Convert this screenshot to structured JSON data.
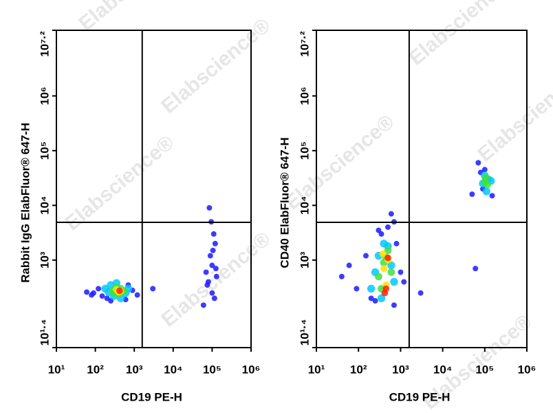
{
  "watermark": "Elabscience®",
  "chart_data": [
    {
      "type": "scatter",
      "xlabel": "CD19 PE-H",
      "ylabel": "Rabbit IgG ElabFluor® 647-H",
      "log_x": true,
      "log_y": true,
      "xlim": [
        10,
        1000000
      ],
      "ylim": [
        25.1188643150958,
        15848931.9246193
      ],
      "xticks": [
        {
          "value": 10,
          "label": "10¹"
        },
        {
          "value": 100,
          "label": "10²"
        },
        {
          "value": 1000,
          "label": "10³"
        },
        {
          "value": 10000,
          "label": "10⁴"
        },
        {
          "value": 100000,
          "label": "10⁵"
        },
        {
          "value": 1000000,
          "label": "10⁶"
        }
      ],
      "yticks": [
        {
          "value": 25.1188643150958,
          "label": "10¹·⁴"
        },
        {
          "value": 1000,
          "label": "10³"
        },
        {
          "value": 10000,
          "label": "10⁴"
        },
        {
          "value": 100000,
          "label": "10⁵"
        },
        {
          "value": 1000000,
          "label": "10⁶"
        },
        {
          "value": 15848931.9246193,
          "label": "10⁷·²"
        }
      ],
      "quadrant_gate": {
        "x": 1600,
        "y": 4900
      },
      "series": [
        {
          "color": "#1a1aff",
          "x": [
            60,
            90,
            120,
            150,
            200,
            900,
            1200,
            700,
            80,
            250,
            600,
            3000,
            60000,
            80000,
            100000,
            120000,
            90000,
            110000,
            70000,
            130000,
            100000,
            95000,
            85000,
            115000,
            105000,
            75000,
            125000
          ],
          "values": [
            260,
            250,
            300,
            220,
            200,
            280,
            230,
            350,
            230,
            180,
            190,
            300,
            150,
            400,
            800,
            2000,
            1200,
            3000,
            600,
            500,
            250,
            5000,
            9000,
            200,
            1500,
            350,
            700
          ]
        },
        {
          "color": "#00c8ff",
          "x": [
            180,
            250,
            300,
            450,
            600,
            700,
            350,
            220
          ],
          "values": [
            300,
            350,
            220,
            200,
            250,
            300,
            380,
            260
          ]
        },
        {
          "color": "#40e040",
          "x": [
            280,
            350,
            450,
            550,
            400,
            300
          ],
          "values": [
            280,
            320,
            300,
            270,
            240,
            250
          ]
        },
        {
          "color": "#ffe000",
          "x": [
            350,
            450,
            400
          ],
          "values": [
            290,
            270,
            260
          ]
        },
        {
          "color": "#ff2000",
          "x": [
            420
          ],
          "values": [
            275
          ]
        }
      ]
    },
    {
      "type": "scatter",
      "xlabel": "CD19 PE-H",
      "ylabel": "CD40 ElabFluor® 647-H",
      "log_x": true,
      "log_y": true,
      "xlim": [
        10,
        1000000
      ],
      "ylim": [
        25.1188643150958,
        15848931.9246193
      ],
      "xticks": [
        {
          "value": 10,
          "label": "10¹"
        },
        {
          "value": 100,
          "label": "10²"
        },
        {
          "value": 1000,
          "label": "10³"
        },
        {
          "value": 10000,
          "label": "10⁴"
        },
        {
          "value": 100000,
          "label": "10⁵"
        },
        {
          "value": 1000000,
          "label": "10⁶"
        }
      ],
      "yticks": [
        {
          "value": 25.1188643150958,
          "label": "10¹·⁴"
        },
        {
          "value": 1000,
          "label": "10³"
        },
        {
          "value": 10000,
          "label": "10⁴"
        },
        {
          "value": 100000,
          "label": "10⁵"
        },
        {
          "value": 1000000,
          "label": "10⁶"
        },
        {
          "value": 15848931.9246193,
          "label": "10⁷·²"
        }
      ],
      "quadrant_gate": {
        "x": 1600,
        "y": 4900
      },
      "series": [
        {
          "color": "#1a1aff",
          "x": [
            40,
            60,
            90,
            150,
            250,
            1000,
            1200,
            800,
            200,
            300,
            600,
            700,
            3000,
            50000,
            70000,
            150000,
            100000,
            60000,
            80000,
            90000,
            350,
            500,
            700
          ],
          "values": [
            500,
            800,
            300,
            1200,
            180,
            600,
            400,
            2000,
            200,
            3500,
            7000,
            150,
            250,
            16000,
            60000,
            15000,
            45000,
            700,
            40000,
            20000,
            3000,
            4000,
            5000
          ]
        },
        {
          "color": "#00c8ff",
          "x": [
            200,
            300,
            400,
            600,
            700,
            250,
            500,
            350,
            90000,
            120000,
            110000,
            100000,
            140000
          ],
          "values": [
            300,
            1200,
            2000,
            800,
            400,
            600,
            1800,
            200,
            25000,
            30000,
            18000,
            35000,
            28000
          ]
        },
        {
          "color": "#40e040",
          "x": [
            300,
            400,
            500,
            600,
            350,
            450,
            100000,
            115000,
            105000
          ],
          "values": [
            500,
            900,
            1500,
            600,
            300,
            1100,
            27000,
            24000,
            32000
          ]
        },
        {
          "color": "#ffe000",
          "x": [
            400,
            500,
            450,
            380
          ],
          "values": [
            700,
            1000,
            350,
            1300
          ]
        },
        {
          "color": "#ff2000",
          "x": [
            450,
            500,
            420
          ],
          "values": [
            300,
            1100,
            250
          ]
        }
      ]
    }
  ]
}
